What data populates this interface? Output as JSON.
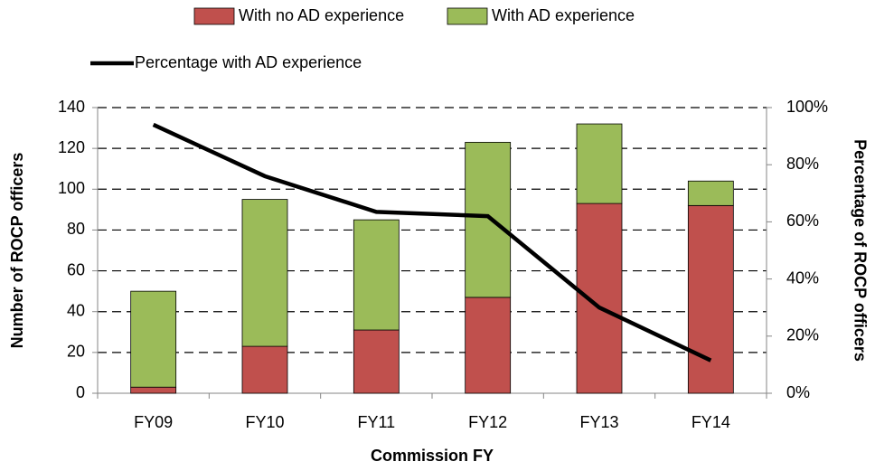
{
  "chart_data": {
    "type": "bar",
    "x_label": "Commission FY",
    "y_label": "Number of ROCP officers",
    "y2_label": "Percentage of ROCP officers",
    "categories": [
      "FY09",
      "FY10",
      "FY11",
      "FY12",
      "FY13",
      "FY14"
    ],
    "series": [
      {
        "name": "With no AD experience",
        "color": "#c0504d",
        "values": [
          3,
          23,
          31,
          47,
          93,
          92
        ]
      },
      {
        "name": "With AD experience",
        "color": "#9bbb59",
        "values": [
          47,
          72,
          54,
          76,
          39,
          12
        ]
      },
      {
        "name": "Percentage with AD experience",
        "color": "#000000",
        "type": "line",
        "axis": "y2",
        "values": [
          94,
          76,
          63.5,
          62,
          30,
          11.5
        ]
      }
    ],
    "ylim": [
      0,
      140
    ],
    "yticks": [
      0,
      20,
      40,
      60,
      80,
      100,
      120,
      140
    ],
    "y2lim": [
      0,
      100
    ],
    "y2ticks": [
      {
        "value": 0,
        "label": "0%"
      },
      {
        "value": 20,
        "label": "20%"
      },
      {
        "value": 40,
        "label": "40%"
      },
      {
        "value": 60,
        "label": "60%"
      },
      {
        "value": 80,
        "label": "80%"
      },
      {
        "value": 100,
        "label": "100%"
      }
    ],
    "grid": true,
    "legend": "top"
  }
}
